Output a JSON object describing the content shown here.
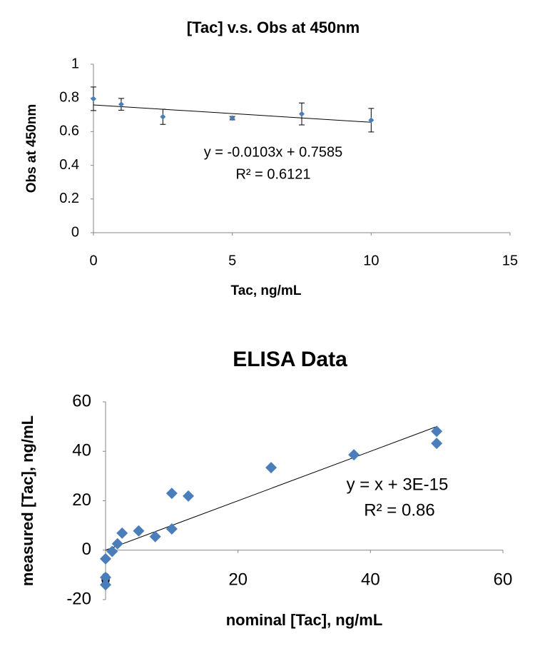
{
  "chart_data": [
    {
      "type": "scatter",
      "title": "[Tac] v.s. Obs at 450nm",
      "x_label": "Tac, ng/mL",
      "y_label": "Obs at 450nm",
      "x": [
        0,
        1,
        2.5,
        5,
        7.5,
        10
      ],
      "values": [
        0.795,
        0.762,
        0.688,
        0.68,
        0.705,
        0.668
      ],
      "errors": [
        0.07,
        0.035,
        0.045,
        0.01,
        0.065,
        0.07
      ],
      "color": "#4a7ebb",
      "xlim": [
        0,
        15
      ],
      "ylim": [
        0,
        1
      ],
      "xticks": [
        0,
        5,
        10,
        15
      ],
      "yticks": [
        0,
        0.2,
        0.4,
        0.6,
        0.8,
        1
      ],
      "grid": false,
      "trendline": {
        "slope": -0.0103,
        "intercept": 0.7585
      },
      "annotations": [
        "y = -0.0103x + 0.7585",
        "R² = 0.6121"
      ]
    },
    {
      "type": "scatter",
      "title": "ELISA Data",
      "x_label": "nominal [Tac], ng/mL",
      "y_label": "measured [Tac], ng/mL",
      "x": [
        0,
        0,
        0,
        1,
        1.8,
        2.5,
        5,
        7.5,
        10,
        10,
        12.5,
        25,
        37.5,
        50,
        50
      ],
      "values": [
        -3.5,
        -11,
        -14,
        -0.5,
        2.6,
        6.9,
        7.8,
        5.5,
        8.6,
        23,
        21.9,
        33.4,
        38.6,
        48.1,
        43.2
      ],
      "color": "#4a7ebb",
      "xlim": [
        0,
        60
      ],
      "ylim": [
        -20,
        60
      ],
      "xticks": [
        0,
        20,
        40,
        60
      ],
      "yticks": [
        -20,
        0,
        20,
        40,
        60
      ],
      "grid": false,
      "trendline": {
        "slope": 1,
        "intercept": 3e-15
      },
      "annotations": [
        "y = x + 3E-15",
        "R² = 0.86"
      ]
    }
  ]
}
